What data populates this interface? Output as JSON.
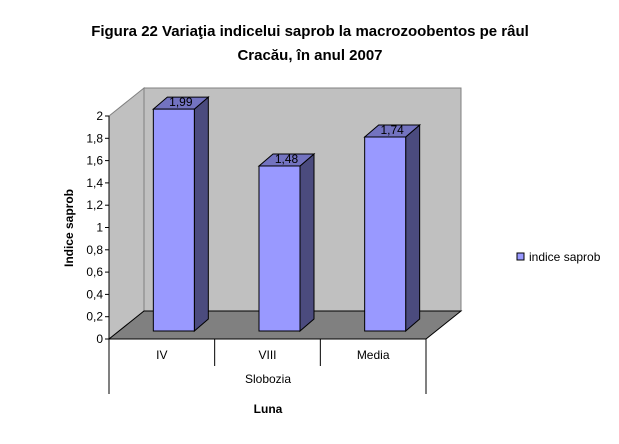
{
  "chart_data": {
    "type": "bar",
    "title_line1": "Figura 22  Variaţia indicelui saprob la macrozoobentos pe râul",
    "title_line2": "Cracău, în anul 2007",
    "categories": [
      "IV",
      "VIII",
      "Media"
    ],
    "group_label": "Slobozia",
    "series": [
      {
        "name": "indice saprob",
        "values": [
          1.99,
          1.48,
          1.74
        ]
      }
    ],
    "value_labels": [
      "1,99",
      "1,48",
      "1,74"
    ],
    "xlabel": "Luna",
    "ylabel": "Indice saprob",
    "ylim": [
      0,
      2
    ],
    "yticks": [
      "0",
      "0,2",
      "0,4",
      "0,6",
      "0,8",
      "1",
      "1,2",
      "1,4",
      "1,6",
      "1,8",
      "2"
    ],
    "legend_position": "right",
    "colors": {
      "bar_front": "#9999FF",
      "bar_side": "#4B4B7E",
      "bar_top": "#7373C0",
      "wall": "#C0C0C0",
      "floor": "#808080"
    }
  }
}
